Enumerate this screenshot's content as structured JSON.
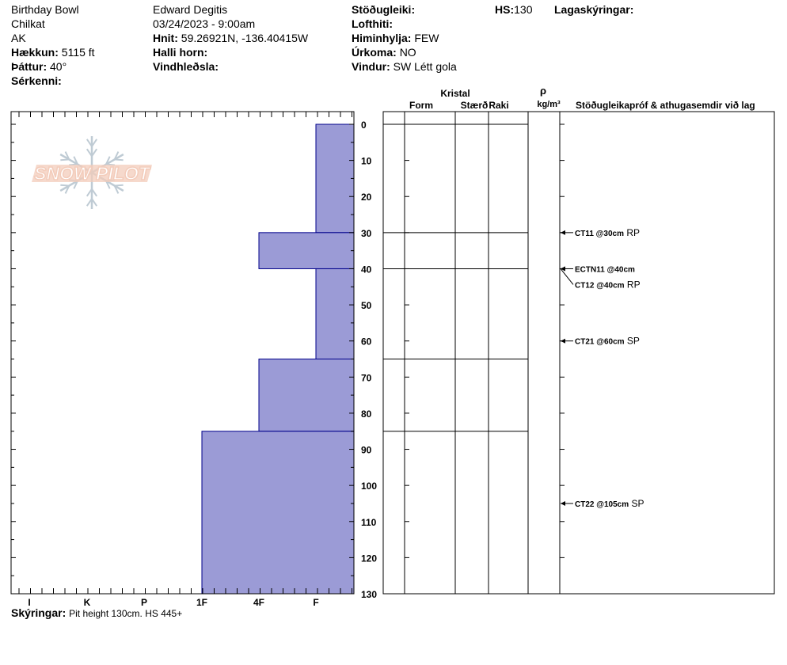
{
  "header": {
    "location": "Birthday Bowl",
    "range": "Chilkat",
    "state": "AK",
    "elevation_label": "Hækkun:",
    "elevation": "5115 ft",
    "aspect_label": "Þáttur:",
    "aspect": "40°",
    "features_label": "Sérkenni:",
    "observer": "Edward Degitis",
    "datetime": "03/24/2023 - 9:00am",
    "coords_label": "Hnit:",
    "coords": "59.26921N, -136.40415W",
    "slope_label": "Halli horn:",
    "wind_loading_label": "Vindhleðsla:",
    "stability_label": "Stöðugleiki:",
    "air_temp_label": "Lofthiti:",
    "sky_label": "Himinhylja:",
    "sky": "FEW",
    "precip_label": "Úrkoma:",
    "precip": "NO",
    "wind_label": "Vindur:",
    "wind": "SW Létt gola",
    "hs_label": "HS:",
    "hs": "130",
    "layer_notes_label": "Lagaskýringar:"
  },
  "footer": {
    "notes_label": "Skýringar:",
    "notes": "Pit height 130cm. HS 445+"
  },
  "logo": {
    "text": "SNOW PILOT"
  },
  "columns": {
    "crystal": "Kristal",
    "form": "Form",
    "size": "Stærð",
    "moisture": "Raki",
    "rho": "ρ",
    "density_unit": "kg/m³",
    "tests_header": "Stöðugleikapróf & athugasemdir við lag"
  },
  "colors": {
    "hardness_fill": "#9b9bd6",
    "hardness_stroke": "#00008b",
    "logo_text": "#f2c7b4",
    "logo_flake": "#b9c6d0"
  },
  "chart_data": {
    "type": "snow_profile",
    "depth_unit": "cm",
    "depth_range": [
      0,
      130
    ],
    "depth_ticks": [
      0,
      10,
      20,
      30,
      40,
      50,
      60,
      70,
      80,
      90,
      100,
      110,
      120,
      130
    ],
    "hardness_scale": [
      "I",
      "K",
      "P",
      "1F",
      "4F",
      "F"
    ],
    "hardness_layers": [
      {
        "top": 0,
        "bottom": 30,
        "hardness": "F"
      },
      {
        "top": 30,
        "bottom": 40,
        "hardness": "4F"
      },
      {
        "top": 40,
        "bottom": 65,
        "hardness": "F"
      },
      {
        "top": 65,
        "bottom": 85,
        "hardness": "4F"
      },
      {
        "top": 85,
        "bottom": 130,
        "hardness": "1F"
      }
    ],
    "layer_boundaries": [
      30,
      40,
      65,
      85
    ],
    "tests": [
      {
        "depth": 30,
        "label": "CT11 @30cm",
        "quality": "RP"
      },
      {
        "depth": 40,
        "label": "ECTN11 @40cm",
        "quality": ""
      },
      {
        "depth": 40,
        "label": "CT12 @40cm",
        "quality": "RP"
      },
      {
        "depth": 60,
        "label": "CT21 @60cm",
        "quality": "SP"
      },
      {
        "depth": 105,
        "label": "CT22 @105cm",
        "quality": "SP"
      }
    ]
  }
}
